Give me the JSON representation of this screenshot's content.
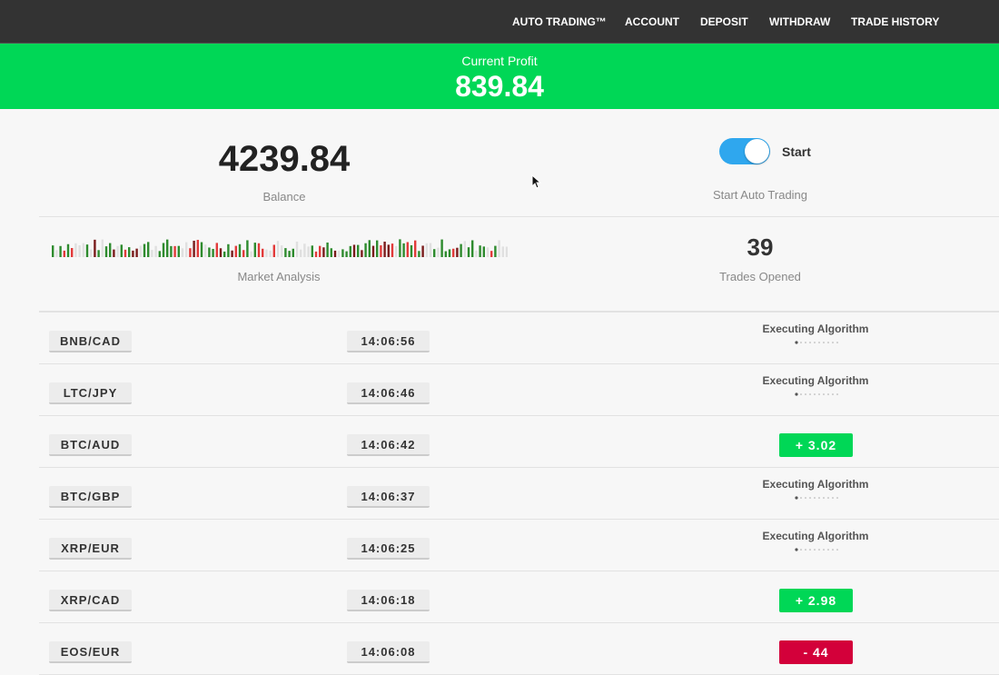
{
  "nav": {
    "items": [
      "AUTO TRADING™",
      "ACCOUNT",
      "DEPOSIT",
      "WITHDRAW",
      "TRADE HISTORY"
    ]
  },
  "profit": {
    "label": "Current Profit",
    "value": "839.84"
  },
  "balance": {
    "value": "4239.84",
    "label": "Balance"
  },
  "auto_trading": {
    "toggle_label": "Start",
    "caption": "Start Auto Trading",
    "enabled": true
  },
  "market": {
    "label": "Market Analysis"
  },
  "trades_opened": {
    "value": "39",
    "label": "Trades Opened"
  },
  "colors": {
    "green": "#00d756",
    "red": "#d3003a",
    "toggle": "#2fa7ee",
    "nav": "#333333"
  },
  "trades": [
    {
      "pair": "BNB/CAD",
      "time": "14:06:56",
      "status": "Executing Algorithm"
    },
    {
      "pair": "LTC/JPY",
      "time": "14:06:46",
      "status": "Executing Algorithm"
    },
    {
      "pair": "BTC/AUD",
      "time": "14:06:42",
      "result": "+  3.02",
      "type": "profit"
    },
    {
      "pair": "BTC/GBP",
      "time": "14:06:37",
      "status": "Executing Algorithm"
    },
    {
      "pair": "XRP/EUR",
      "time": "14:06:25",
      "status": "Executing Algorithm"
    },
    {
      "pair": "XRP/CAD",
      "time": "14:06:18",
      "result": "+  2.98",
      "type": "profit"
    },
    {
      "pair": "EOS/EUR",
      "time": "14:06:08",
      "result": "-   44",
      "type": "loss"
    }
  ]
}
